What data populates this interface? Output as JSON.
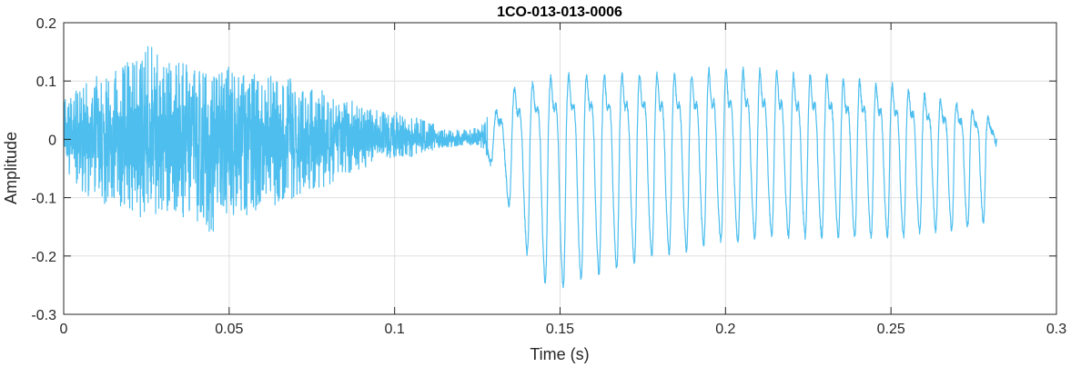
{
  "chart_data": {
    "type": "line",
    "title": "1CO-013-013-0006",
    "xlabel": "Time (s)",
    "ylabel": "Amplitude",
    "xlim": [
      0,
      0.3
    ],
    "ylim": [
      -0.3,
      0.2
    ],
    "xticks": [
      0,
      0.05,
      0.1,
      0.15,
      0.2,
      0.25,
      0.3
    ],
    "xtick_labels": [
      "0",
      "0.05",
      "0.1",
      "0.15",
      "0.2",
      "0.25",
      "0.3"
    ],
    "yticks": [
      -0.3,
      -0.2,
      -0.1,
      0,
      0.1,
      0.2
    ],
    "ytick_labels": [
      "-0.3",
      "-0.2",
      "-0.1",
      "0",
      "0.1",
      "0.2"
    ],
    "grid": true,
    "line_color": "#4DBEEE",
    "series": [
      {
        "x": [
          0,
          0.005,
          0.01,
          0.015,
          0.02,
          0.025,
          0.03,
          0.035,
          0.04,
          0.045,
          0.05,
          0.055,
          0.06,
          0.065,
          0.07,
          0.075,
          0.08,
          0.085,
          0.09,
          0.095,
          0.1,
          0.105,
          0.11,
          0.115,
          0.12,
          0.125,
          0.13,
          0.135,
          0.14,
          0.145,
          0.15,
          0.155,
          0.16,
          0.165,
          0.17,
          0.175,
          0.18,
          0.185,
          0.19,
          0.195,
          0.2,
          0.205,
          0.21,
          0.215,
          0.22,
          0.225,
          0.23,
          0.235,
          0.24,
          0.245,
          0.25,
          0.255,
          0.26,
          0.265,
          0.27,
          0.275,
          0.28,
          0.282
        ],
        "upper": [
          0.07,
          0.09,
          0.11,
          0.12,
          0.14,
          0.17,
          0.15,
          0.14,
          0.12,
          0.11,
          0.13,
          0.12,
          0.11,
          0.12,
          0.1,
          0.09,
          0.08,
          0.07,
          0.06,
          0.05,
          0.05,
          0.04,
          0.03,
          0.02,
          0.015,
          0.02,
          0.05,
          0.1,
          0.11,
          0.12,
          0.13,
          0.13,
          0.13,
          0.13,
          0.13,
          0.13,
          0.13,
          0.13,
          0.13,
          0.14,
          0.14,
          0.14,
          0.14,
          0.14,
          0.13,
          0.13,
          0.13,
          0.12,
          0.12,
          0.11,
          0.11,
          0.1,
          0.09,
          0.08,
          0.07,
          0.06,
          0.04,
          0.01
        ],
        "lower": [
          -0.05,
          -0.09,
          -0.11,
          -0.12,
          -0.13,
          -0.14,
          -0.12,
          -0.14,
          -0.15,
          -0.16,
          -0.14,
          -0.13,
          -0.12,
          -0.11,
          -0.1,
          -0.09,
          -0.08,
          -0.06,
          -0.05,
          -0.04,
          -0.03,
          -0.03,
          -0.02,
          -0.015,
          -0.01,
          -0.01,
          -0.05,
          -0.12,
          -0.2,
          -0.25,
          -0.26,
          -0.25,
          -0.24,
          -0.23,
          -0.22,
          -0.21,
          -0.2,
          -0.2,
          -0.19,
          -0.18,
          -0.18,
          -0.18,
          -0.17,
          -0.17,
          -0.17,
          -0.17,
          -0.17,
          -0.17,
          -0.17,
          -0.17,
          -0.17,
          -0.17,
          -0.16,
          -0.16,
          -0.16,
          -0.15,
          -0.14,
          0.0
        ]
      }
    ]
  }
}
